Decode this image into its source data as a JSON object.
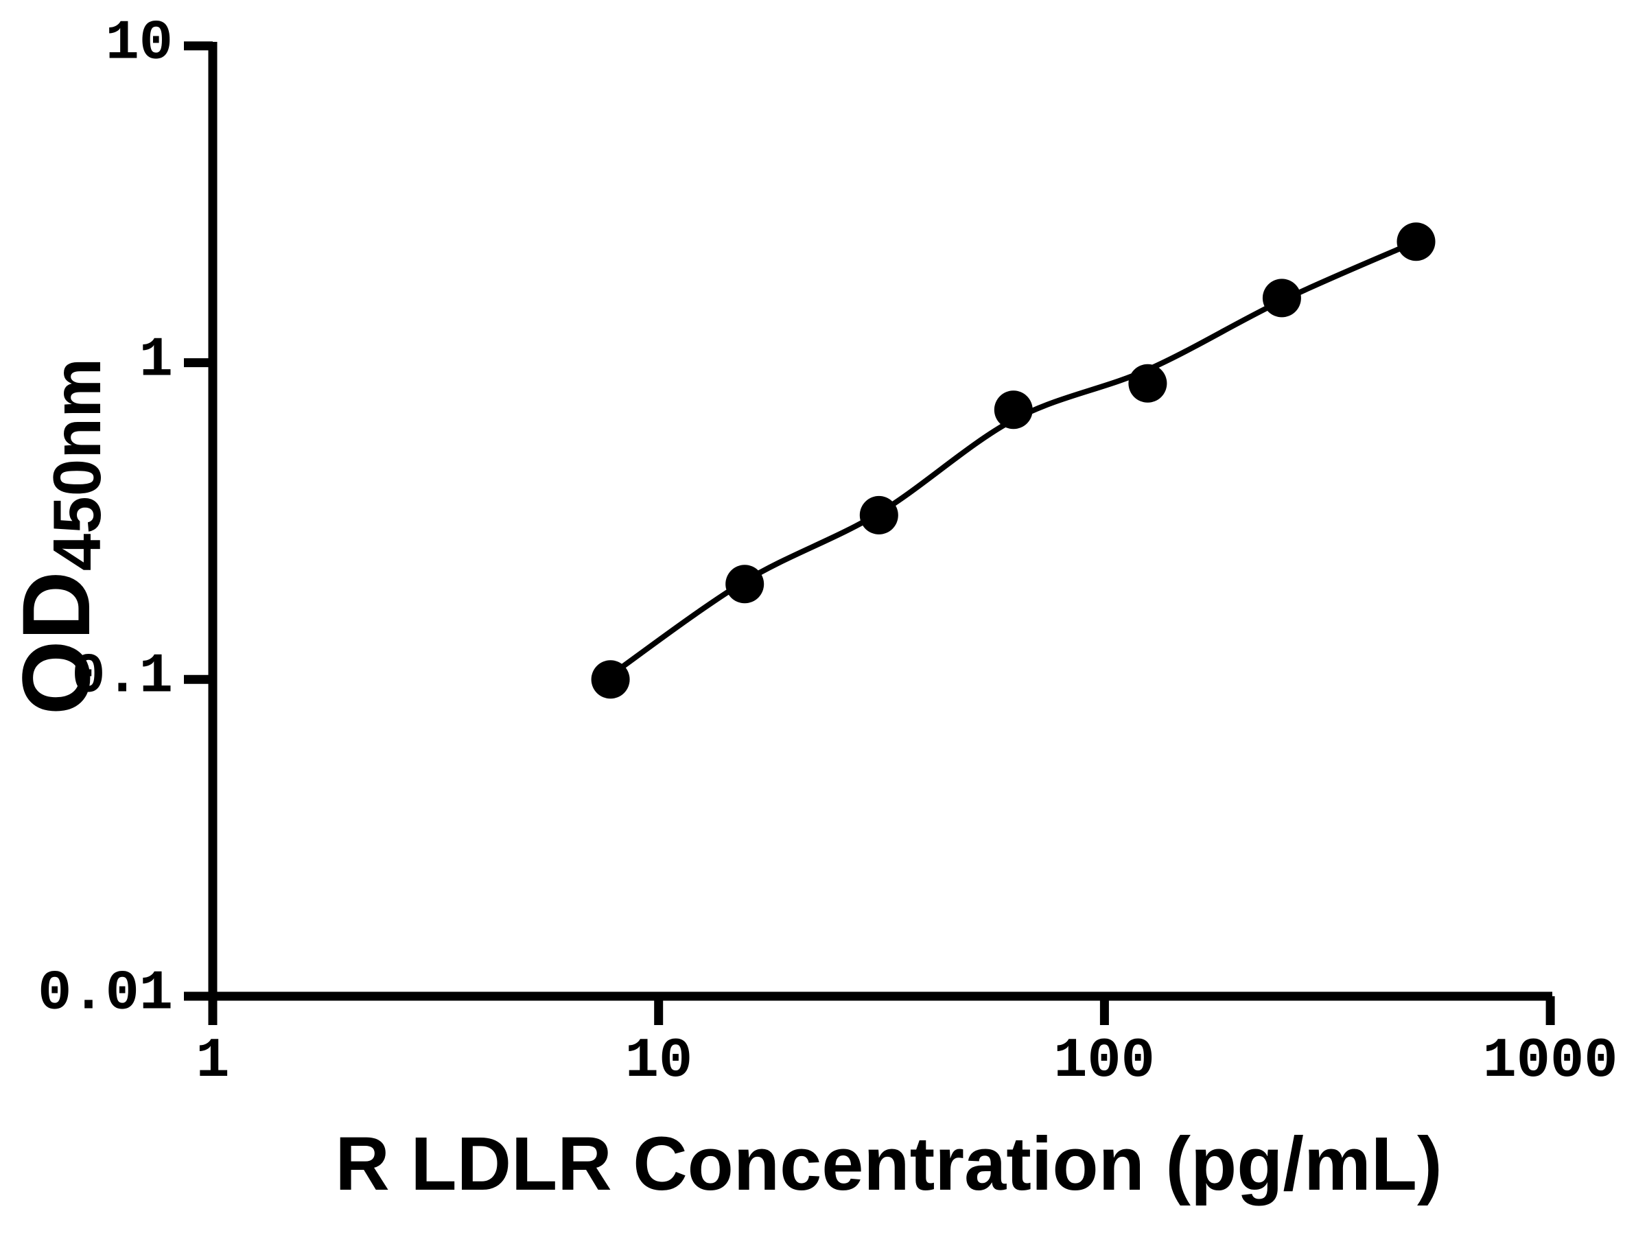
{
  "figure": {
    "background_color": "#ffffff",
    "foreground_color": "#000000"
  },
  "chart_data": {
    "type": "scatter",
    "title": "",
    "xlabel": "R LDLR Concentration (pg/mL)",
    "ylabel": "OD450nm",
    "ylabel_main": "OD",
    "ylabel_sub": "450nm",
    "x_scale": "log",
    "y_scale": "log",
    "xlim": [
      1,
      1000
    ],
    "ylim": [
      0.01,
      10
    ],
    "x_ticklabels": [
      "1",
      "10",
      "100",
      "1000"
    ],
    "x_tickvalues": [
      1,
      10,
      100,
      1000
    ],
    "y_ticklabels": [
      "10",
      "1",
      "0.1",
      "0.01"
    ],
    "y_tickvalues": [
      10,
      1,
      0.1,
      0.01
    ],
    "grid": false,
    "legend": null,
    "series": [
      {
        "name": "standard-curve-points",
        "marker": "filled-circle",
        "marker_color": "#000000",
        "x": [
          7.8,
          15.6,
          31.2,
          62.5,
          125,
          250,
          500
        ],
        "values": [
          0.1,
          0.2,
          0.33,
          0.71,
          0.86,
          1.6,
          2.41
        ]
      }
    ],
    "fit_curve": {
      "name": "fitted-line",
      "line_color": "#000000",
      "x": [
        7.8,
        15.6,
        31.2,
        62.5,
        125,
        250,
        500
      ],
      "od": [
        0.103,
        0.204,
        0.335,
        0.66,
        0.95,
        1.57,
        2.41
      ]
    }
  }
}
